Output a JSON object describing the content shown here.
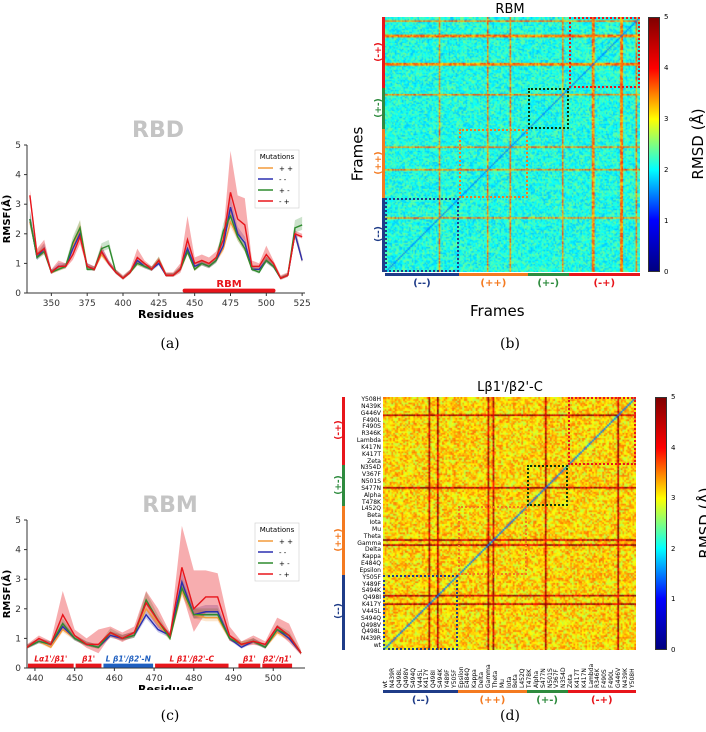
{
  "chart_data": [
    {
      "type": "line",
      "panel": "a",
      "title": "RBD",
      "xlabel": "Residues",
      "ylabel": "RMSF(Å)",
      "xlim": [
        333,
        527
      ],
      "ylim": [
        0,
        5
      ],
      "xticks": [
        350,
        375,
        400,
        425,
        450,
        475,
        500,
        525
      ],
      "yticks": [
        0,
        1,
        2,
        3,
        4,
        5
      ],
      "legend": {
        "title": "Mutations",
        "placement": "top-right"
      },
      "region_label": {
        "text": "RBM",
        "range": [
          443,
          505
        ],
        "color": "#e8151b"
      },
      "x": [
        335,
        340,
        345,
        350,
        355,
        360,
        365,
        370,
        375,
        380,
        385,
        390,
        395,
        400,
        405,
        410,
        415,
        420,
        425,
        430,
        435,
        440,
        445,
        450,
        455,
        460,
        465,
        470,
        475,
        480,
        485,
        490,
        495,
        500,
        505,
        510,
        515,
        520,
        525
      ],
      "series": [
        {
          "name": "+ +",
          "color": "#f39a3a",
          "values": [
            2.4,
            1.3,
            1.5,
            0.7,
            0.8,
            0.9,
            1.6,
            2.2,
            0.9,
            0.8,
            1.3,
            1.0,
            0.7,
            0.5,
            0.7,
            1.0,
            0.9,
            0.8,
            1.1,
            0.6,
            0.6,
            0.8,
            1.4,
            0.8,
            1.0,
            0.9,
            1.1,
            1.5,
            2.4,
            1.9,
            1.5,
            0.8,
            0.8,
            1.1,
            0.9,
            0.5,
            0.6,
            2.0,
            1.1
          ]
        },
        {
          "name": "- -",
          "color": "#2b2fb0",
          "values": [
            2.5,
            1.2,
            1.5,
            0.7,
            0.9,
            0.9,
            1.5,
            2.0,
            0.9,
            0.8,
            1.4,
            1.0,
            0.7,
            0.5,
            0.7,
            1.1,
            0.9,
            0.8,
            1.0,
            0.6,
            0.6,
            0.8,
            1.5,
            0.9,
            1.0,
            0.9,
            1.1,
            1.6,
            2.9,
            2.0,
            1.7,
            0.8,
            0.8,
            1.1,
            0.9,
            0.5,
            0.6,
            2.0,
            1.1
          ]
        },
        {
          "name": "+ -",
          "color": "#2e8b2e",
          "values": [
            2.5,
            1.2,
            1.4,
            0.7,
            0.8,
            0.9,
            1.7,
            2.2,
            0.8,
            0.8,
            1.5,
            1.6,
            0.7,
            0.5,
            0.7,
            1.0,
            0.9,
            0.8,
            1.1,
            0.6,
            0.6,
            0.8,
            1.4,
            0.8,
            1.0,
            0.9,
            1.1,
            2.1,
            2.6,
            1.9,
            1.5,
            0.8,
            0.7,
            1.1,
            0.9,
            0.5,
            0.6,
            2.2,
            2.3
          ]
        },
        {
          "name": "- +",
          "color": "#e8151b",
          "values": [
            3.3,
            1.3,
            1.5,
            0.7,
            0.9,
            0.9,
            1.3,
            1.9,
            0.9,
            0.8,
            1.4,
            1.0,
            0.7,
            0.5,
            0.7,
            1.2,
            1.0,
            0.8,
            1.1,
            0.6,
            0.6,
            0.8,
            1.8,
            1.0,
            1.1,
            1.0,
            1.2,
            1.8,
            3.4,
            2.5,
            2.3,
            0.9,
            0.9,
            1.3,
            1.0,
            0.5,
            0.6,
            2.0,
            1.9
          ],
          "band_upper": [
            3.5,
            1.5,
            1.8,
            0.8,
            1.1,
            1.0,
            1.6,
            2.3,
            1.0,
            0.9,
            1.6,
            1.1,
            0.8,
            0.6,
            0.8,
            1.5,
            1.1,
            0.9,
            1.2,
            0.7,
            0.7,
            1.0,
            2.6,
            1.2,
            1.3,
            1.2,
            1.4,
            2.0,
            4.8,
            3.3,
            3.2,
            1.1,
            1.0,
            1.6,
            1.1,
            0.6,
            0.7,
            2.1,
            2.0
          ]
        }
      ]
    },
    {
      "type": "heatmap",
      "panel": "b",
      "title": "RBM",
      "xlabel": "Frames",
      "ylabel": "Frames",
      "colorbar": {
        "label": "RMSD (Å)",
        "range": [
          0,
          5
        ],
        "ticks": [
          0,
          1,
          2,
          3,
          4,
          5
        ]
      },
      "groups": [
        {
          "label": "(--)",
          "color": "#1f3c88",
          "fraction": 0.29
        },
        {
          "label": "(++)",
          "color": "#f47a20",
          "fraction": 0.27
        },
        {
          "label": "(+-)",
          "color": "#2e8b3e",
          "fraction": 0.16
        },
        {
          "label": "(-+)",
          "color": "#e8151b",
          "fraction": 0.28
        }
      ],
      "typical_rmsd": 2.0
    },
    {
      "type": "line",
      "panel": "c",
      "title": "RBM",
      "xlabel": "Residues",
      "ylabel": "RMSF(Å)",
      "xlim": [
        438,
        508
      ],
      "ylim": [
        0,
        5
      ],
      "xticks": [
        440,
        450,
        460,
        470,
        480,
        490,
        500
      ],
      "yticks": [
        0,
        1,
        2,
        3,
        4,
        5
      ],
      "legend": {
        "title": "Mutations",
        "placement": "top-right"
      },
      "segments": [
        {
          "text": "Lα1'/β1'",
          "range": [
            438,
            450
          ],
          "color": "#e8151b"
        },
        {
          "text": "β1'",
          "range": [
            450,
            457
          ],
          "color": "#e8151b"
        },
        {
          "text": "L β1'/β2'-N",
          "range": [
            457,
            470
          ],
          "color": "#1f5fc0"
        },
        {
          "text": "L β1'/β2'-C",
          "range": [
            470,
            489
          ],
          "color": "#e8151b"
        },
        {
          "text": "β1'",
          "range": [
            491,
            497
          ],
          "color": "#e8151b"
        },
        {
          "text": "β2'/η1'",
          "range": [
            497,
            505
          ],
          "color": "#e8151b"
        }
      ],
      "x": [
        438,
        441,
        444,
        447,
        450,
        453,
        456,
        459,
        462,
        465,
        468,
        471,
        474,
        477,
        480,
        483,
        486,
        489,
        492,
        495,
        498,
        501,
        504,
        507
      ],
      "series": [
        {
          "name": "+ +",
          "color": "#f39a3a",
          "values": [
            0.7,
            0.9,
            0.7,
            1.3,
            1.0,
            0.8,
            0.7,
            1.1,
            1.0,
            1.1,
            2.0,
            1.5,
            1.0,
            2.6,
            1.8,
            1.7,
            1.7,
            1.0,
            0.8,
            0.9,
            0.7,
            1.2,
            1.0,
            0.5
          ]
        },
        {
          "name": "- -",
          "color": "#2b2fb0",
          "values": [
            0.7,
            0.9,
            0.8,
            1.4,
            1.0,
            0.8,
            0.7,
            1.1,
            1.0,
            1.1,
            1.8,
            1.3,
            1.1,
            2.9,
            1.8,
            1.9,
            1.9,
            1.0,
            0.7,
            0.9,
            0.7,
            1.3,
            1.0,
            0.5
          ]
        },
        {
          "name": "+ -",
          "color": "#2e8b2e",
          "values": [
            0.7,
            0.9,
            0.8,
            1.5,
            1.0,
            0.8,
            0.7,
            1.2,
            1.0,
            1.1,
            2.3,
            1.6,
            1.0,
            2.7,
            1.8,
            1.8,
            1.8,
            1.0,
            0.8,
            0.9,
            0.7,
            1.3,
            1.1,
            0.5
          ]
        },
        {
          "name": "- +",
          "color": "#e8151b",
          "values": [
            0.7,
            1.0,
            0.8,
            1.8,
            1.1,
            0.8,
            0.8,
            1.2,
            1.0,
            1.2,
            2.2,
            1.6,
            1.1,
            3.4,
            2.0,
            2.4,
            2.4,
            1.1,
            0.8,
            0.9,
            0.8,
            1.4,
            1.1,
            0.5
          ],
          "band_upper": [
            0.8,
            1.1,
            0.9,
            2.6,
            1.3,
            1.0,
            1.3,
            1.4,
            1.2,
            1.4,
            2.6,
            2.0,
            1.2,
            4.8,
            3.3,
            3.3,
            3.2,
            1.4,
            0.9,
            1.1,
            0.9,
            1.7,
            1.5,
            0.6
          ]
        }
      ]
    },
    {
      "type": "heatmap",
      "panel": "d",
      "title": "Lβ1'/β2'-C",
      "colorbar": {
        "label": "RMSD (Å)",
        "range": [
          0,
          5
        ],
        "ticks": [
          0,
          1,
          2,
          3,
          4,
          5
        ]
      },
      "labels": [
        "wt",
        "N439R",
        "Q498L",
        "Q498V",
        "S494Q",
        "V445L",
        "K417Y",
        "Q498I",
        "S494K",
        "Y489F",
        "Y505F",
        "Epsilon",
        "E484Q",
        "Kappa",
        "Delta",
        "Gamma",
        "Theta",
        "Mu",
        "Iota",
        "Beta",
        "L452Q",
        "T478K",
        "Alpha",
        "S477N",
        "N501S",
        "V367F",
        "N354D",
        "Zeta",
        "K417T",
        "K417N",
        "Lambda",
        "R346K",
        "F490S",
        "F490L",
        "G446V",
        "N439K",
        "Y508H"
      ],
      "groups": [
        {
          "label": "(--)",
          "color": "#1f3c88",
          "count": 11
        },
        {
          "label": "(++)",
          "color": "#f47a20",
          "count": 10
        },
        {
          "label": "(+-)",
          "color": "#2e8b3e",
          "count": 6
        },
        {
          "label": "(-+)",
          "color": "#e8151b",
          "count": 10
        }
      ],
      "typical_rmsd": 3.3
    }
  ],
  "captions": [
    "(a)",
    "(b)",
    "(c)",
    "(d)"
  ]
}
